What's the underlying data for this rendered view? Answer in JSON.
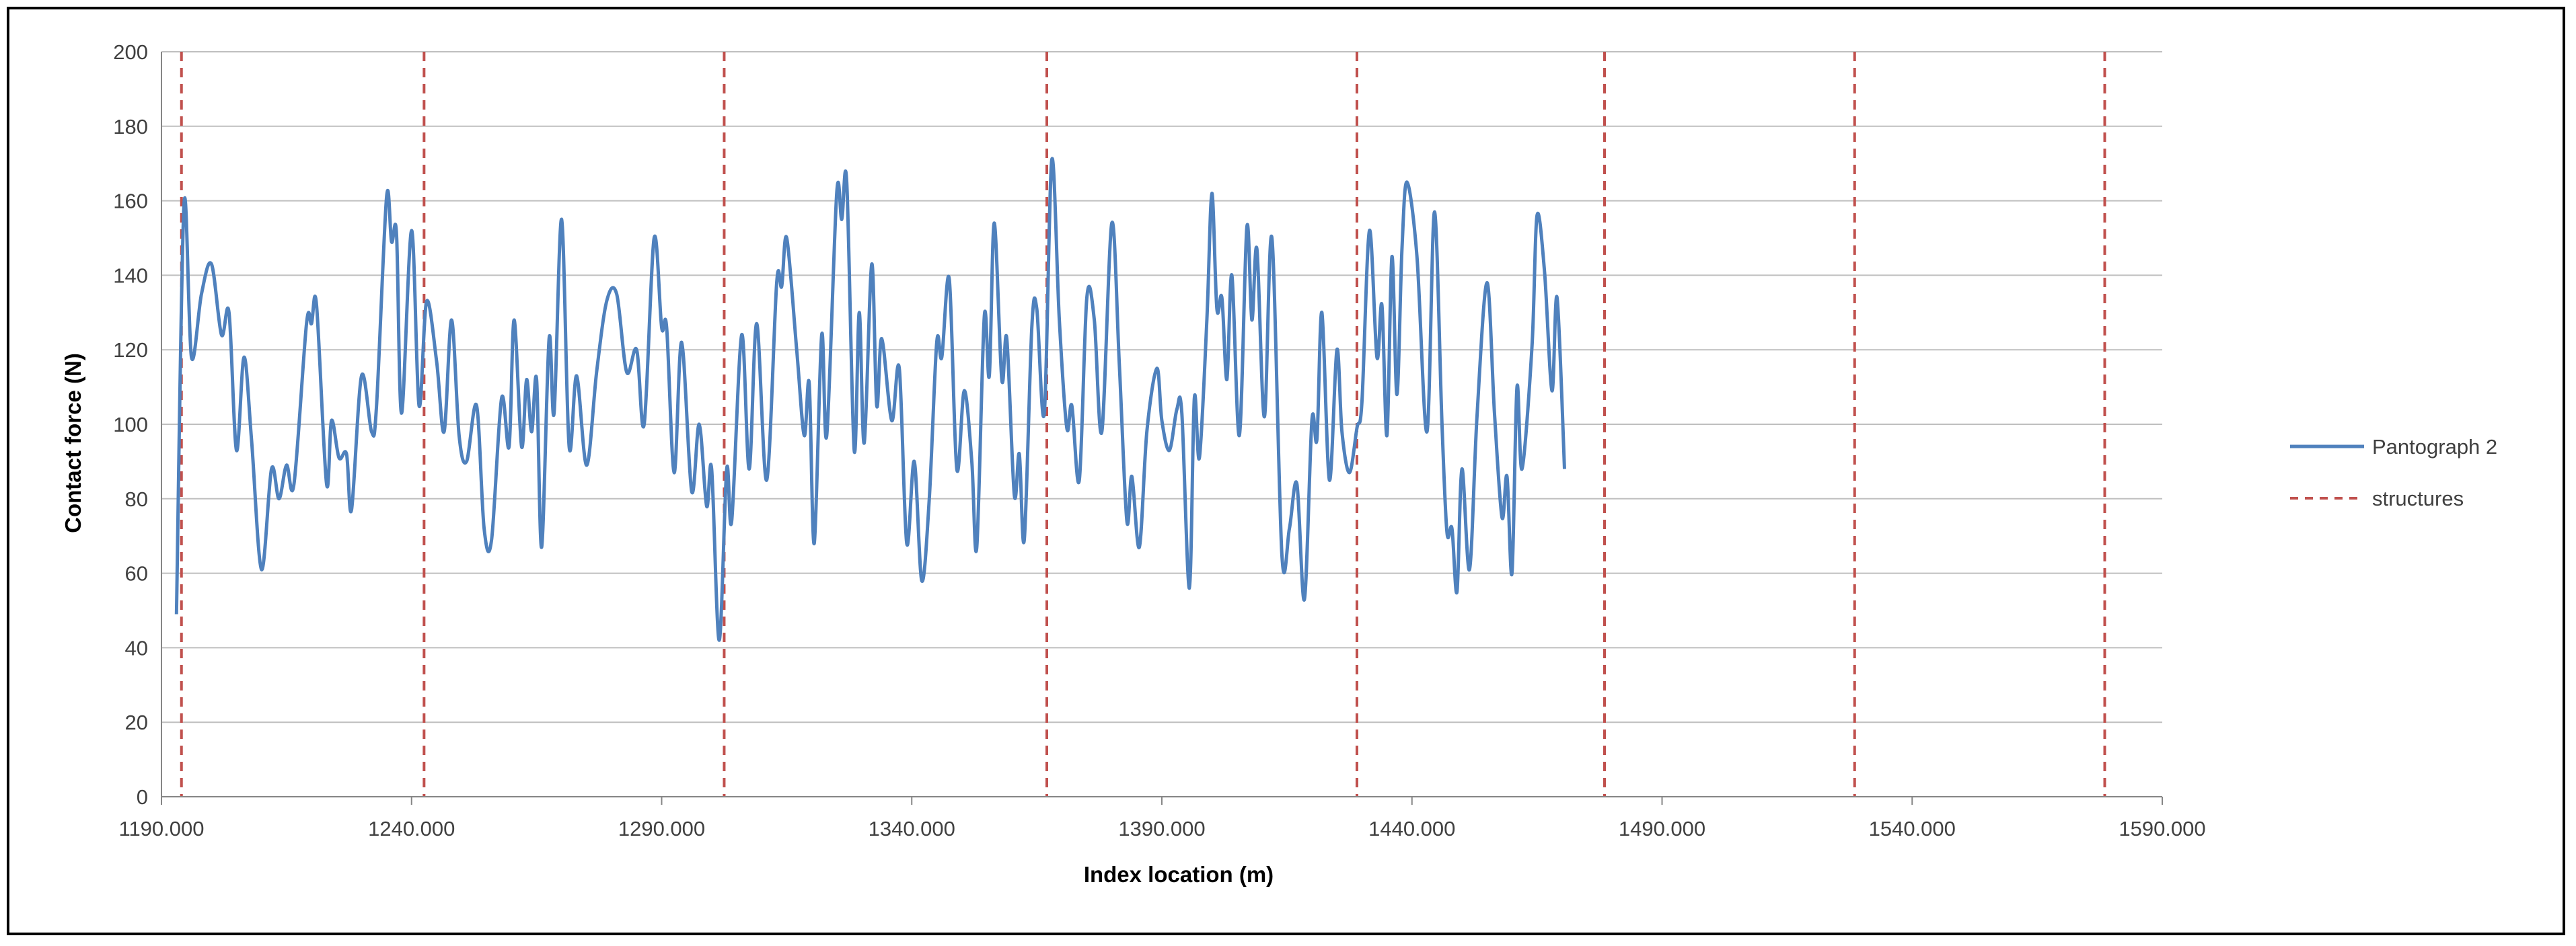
{
  "chart_data": {
    "type": "line",
    "xlabel": "Index location (m)",
    "ylabel": "Contact force (N)",
    "xlim": [
      1190,
      1590
    ],
    "ylim": [
      0,
      200
    ],
    "x_ticks": [
      "1190.000",
      "1240.000",
      "1290.000",
      "1340.000",
      "1390.000",
      "1440.000",
      "1490.000",
      "1540.000",
      "1590.000"
    ],
    "y_ticks": [
      "0",
      "20",
      "40",
      "60",
      "80",
      "100",
      "120",
      "140",
      "160",
      "180",
      "200"
    ],
    "grid": "horizontal",
    "legend_position": "right",
    "series": [
      {
        "name": "Pantograph 2",
        "color": "#4f81bd",
        "style": "solid",
        "points": [
          [
            1193,
            49
          ],
          [
            1194.5,
            159
          ],
          [
            1196,
            118
          ],
          [
            1198,
            135
          ],
          [
            1200,
            143
          ],
          [
            1202,
            124
          ],
          [
            1203.5,
            130
          ],
          [
            1205,
            93
          ],
          [
            1206.5,
            118
          ],
          [
            1208,
            96
          ],
          [
            1210,
            61
          ],
          [
            1212,
            88
          ],
          [
            1213.5,
            80
          ],
          [
            1215,
            89
          ],
          [
            1216.5,
            84
          ],
          [
            1219,
            127
          ],
          [
            1220,
            127
          ],
          [
            1221,
            132
          ],
          [
            1223,
            84
          ],
          [
            1224,
            101
          ],
          [
            1225.5,
            91
          ],
          [
            1227,
            92
          ],
          [
            1228,
            77
          ],
          [
            1230,
            113
          ],
          [
            1232,
            98
          ],
          [
            1233,
            105
          ],
          [
            1235,
            161
          ],
          [
            1236,
            149
          ],
          [
            1237,
            151
          ],
          [
            1238,
            103
          ],
          [
            1240,
            152
          ],
          [
            1241.5,
            105
          ],
          [
            1243,
            133
          ],
          [
            1245,
            117
          ],
          [
            1246.5,
            98
          ],
          [
            1248,
            128
          ],
          [
            1249.5,
            97
          ],
          [
            1251,
            90
          ],
          [
            1253,
            105
          ],
          [
            1254.5,
            72
          ],
          [
            1256,
            69
          ],
          [
            1258,
            107
          ],
          [
            1259.5,
            94
          ],
          [
            1260.5,
            128
          ],
          [
            1262,
            94
          ],
          [
            1263,
            112
          ],
          [
            1264,
            98
          ],
          [
            1265,
            112
          ],
          [
            1266,
            67
          ],
          [
            1267.5,
            123
          ],
          [
            1268.5,
            103
          ],
          [
            1270,
            155
          ],
          [
            1271.5,
            94
          ],
          [
            1273,
            113
          ],
          [
            1275,
            89
          ],
          [
            1277,
            114
          ],
          [
            1279,
            133
          ],
          [
            1281,
            135
          ],
          [
            1283,
            114
          ],
          [
            1285,
            120
          ],
          [
            1286.5,
            100
          ],
          [
            1288.5,
            150
          ],
          [
            1290,
            126
          ],
          [
            1291,
            126
          ],
          [
            1292.5,
            87
          ],
          [
            1294,
            122
          ],
          [
            1296,
            82
          ],
          [
            1297.5,
            100
          ],
          [
            1299,
            78
          ],
          [
            1300,
            88
          ],
          [
            1301.5,
            42
          ],
          [
            1303,
            88
          ],
          [
            1304,
            74
          ],
          [
            1306,
            124
          ],
          [
            1307.5,
            88
          ],
          [
            1309,
            127
          ],
          [
            1311,
            85
          ],
          [
            1313,
            138
          ],
          [
            1314,
            137
          ],
          [
            1315,
            150
          ],
          [
            1317,
            120
          ],
          [
            1318.5,
            97
          ],
          [
            1319.5,
            111
          ],
          [
            1320.5,
            68
          ],
          [
            1322,
            124
          ],
          [
            1323,
            97
          ],
          [
            1325,
            162
          ],
          [
            1326,
            155
          ],
          [
            1327,
            165
          ],
          [
            1328.5,
            93
          ],
          [
            1329.5,
            130
          ],
          [
            1330.5,
            95
          ],
          [
            1332,
            143
          ],
          [
            1333,
            105
          ],
          [
            1334,
            123
          ],
          [
            1336,
            101
          ],
          [
            1337.5,
            115
          ],
          [
            1339,
            68
          ],
          [
            1340.5,
            90
          ],
          [
            1342,
            58
          ],
          [
            1343.5,
            80
          ],
          [
            1345,
            122
          ],
          [
            1346,
            118
          ],
          [
            1347.5,
            139
          ],
          [
            1349,
            88
          ],
          [
            1350.5,
            109
          ],
          [
            1352,
            90
          ],
          [
            1353,
            67
          ],
          [
            1354.5,
            129
          ],
          [
            1355.5,
            113
          ],
          [
            1356.5,
            154
          ],
          [
            1358,
            112
          ],
          [
            1359,
            123
          ],
          [
            1360.5,
            81
          ],
          [
            1361.5,
            92
          ],
          [
            1362.5,
            69
          ],
          [
            1364,
            126
          ],
          [
            1365,
            131
          ],
          [
            1366.5,
            103
          ],
          [
            1368,
            171
          ],
          [
            1369.5,
            128
          ],
          [
            1371,
            99
          ],
          [
            1372,
            105
          ],
          [
            1373.5,
            85
          ],
          [
            1375,
            134
          ],
          [
            1376.5,
            128
          ],
          [
            1378,
            98
          ],
          [
            1380,
            154
          ],
          [
            1381.5,
            116
          ],
          [
            1383,
            74
          ],
          [
            1384,
            86
          ],
          [
            1385.5,
            67
          ],
          [
            1387,
            98
          ],
          [
            1389,
            115
          ],
          [
            1390,
            101
          ],
          [
            1391.5,
            93
          ],
          [
            1393,
            104
          ],
          [
            1394,
            103
          ],
          [
            1395.5,
            56
          ],
          [
            1396.5,
            107
          ],
          [
            1397.5,
            91
          ],
          [
            1399,
            128
          ],
          [
            1400,
            162
          ],
          [
            1401,
            131
          ],
          [
            1402,
            134
          ],
          [
            1403,
            112
          ],
          [
            1404,
            140
          ],
          [
            1405.5,
            97
          ],
          [
            1407,
            153
          ],
          [
            1408,
            128
          ],
          [
            1409,
            147
          ],
          [
            1410.5,
            102
          ],
          [
            1412,
            150
          ],
          [
            1414,
            65
          ],
          [
            1415.5,
            72
          ],
          [
            1417,
            84
          ],
          [
            1418.5,
            53
          ],
          [
            1420,
            101
          ],
          [
            1421,
            96
          ],
          [
            1422,
            130
          ],
          [
            1423.5,
            85
          ],
          [
            1425,
            120
          ],
          [
            1426,
            98
          ],
          [
            1427.5,
            87
          ],
          [
            1429,
            99
          ],
          [
            1430,
            106
          ],
          [
            1431.5,
            152
          ],
          [
            1433,
            118
          ],
          [
            1434,
            132
          ],
          [
            1435,
            97
          ],
          [
            1436,
            145
          ],
          [
            1437,
            108
          ],
          [
            1438,
            147
          ],
          [
            1439,
            165
          ],
          [
            1441,
            145
          ],
          [
            1443,
            98
          ],
          [
            1444.5,
            157
          ],
          [
            1446,
            100
          ],
          [
            1447,
            71
          ],
          [
            1448,
            72
          ],
          [
            1449,
            55
          ],
          [
            1450,
            88
          ],
          [
            1451.5,
            61
          ],
          [
            1453,
            102
          ],
          [
            1455,
            138
          ],
          [
            1456.5,
            103
          ],
          [
            1458,
            75
          ],
          [
            1459,
            86
          ],
          [
            1460,
            60
          ],
          [
            1461,
            110
          ],
          [
            1462,
            88
          ],
          [
            1464,
            121
          ],
          [
            1465,
            156
          ],
          [
            1466.5,
            141
          ],
          [
            1468,
            109
          ],
          [
            1469,
            134
          ],
          [
            1470.5,
            88
          ]
        ]
      },
      {
        "name": "structures",
        "color": "#c0504d",
        "style": "dashed",
        "x_positions": [
          1194,
          1242.5,
          1302.5,
          1367,
          1429,
          1478.5,
          1528.5,
          1578.5
        ]
      }
    ]
  }
}
